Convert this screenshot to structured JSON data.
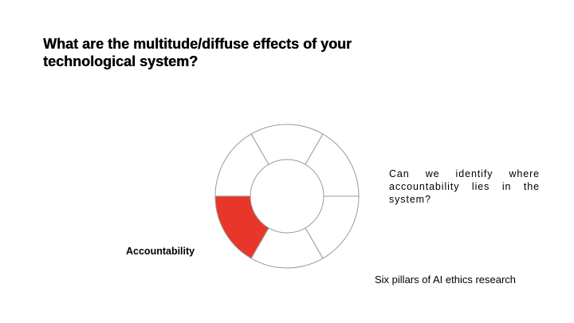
{
  "slide": {
    "title": "What are the multitude/diffuse effects of your technological system?",
    "question": "Can we identify where accountability lies in the system?",
    "highlighted_pillar_label": "Accountability",
    "caption": "Six pillars of AI ethics research"
  },
  "ring": {
    "segment_count": 6,
    "highlighted_index": 4,
    "highlight_color": "#e8372a",
    "stroke_color": "#9a9a9a",
    "fill_color": "#ffffff"
  }
}
